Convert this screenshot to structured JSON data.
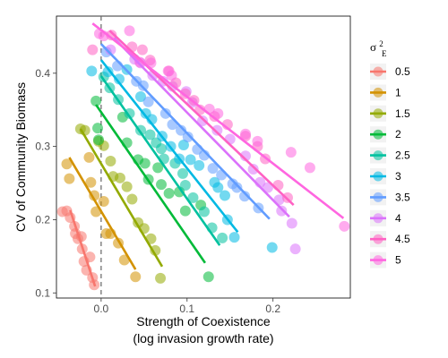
{
  "chart_data": {
    "type": "scatter",
    "xlabel_line1": "Strength of Coexistence",
    "xlabel_line2": "(log invasion growth rate)",
    "ylabel": "CV of Community Biomass",
    "xlim": [
      -0.052,
      0.29
    ],
    "ylim": [
      0.093,
      0.478
    ],
    "x_ticks": [
      0.0,
      0.1,
      0.2
    ],
    "x_tick_labels": [
      "0.0",
      "0.1",
      "0.2"
    ],
    "y_ticks": [
      0.1,
      0.2,
      0.3,
      0.4
    ],
    "y_tick_labels": [
      "0.1",
      "0.2",
      "0.3",
      "0.4"
    ],
    "vline_x": 0,
    "grid": true,
    "legend_position": "right",
    "legend_title": "σ²E",
    "series": [
      {
        "name": "0.5",
        "color": "#f8766d",
        "line": [
          [
            -0.036,
            0.213
          ],
          [
            -0.007,
            0.109
          ]
        ],
        "points": [
          [
            -0.045,
            0.211
          ],
          [
            -0.04,
            0.212
          ],
          [
            -0.036,
            0.203
          ],
          [
            -0.031,
            0.191
          ],
          [
            -0.03,
            0.181
          ],
          [
            -0.027,
            0.174
          ],
          [
            -0.023,
            0.177
          ],
          [
            -0.022,
            0.16
          ],
          [
            -0.02,
            0.143
          ],
          [
            -0.017,
            0.131
          ],
          [
            -0.013,
            0.149
          ],
          [
            -0.01,
            0.121
          ],
          [
            -0.008,
            0.111
          ]
        ]
      },
      {
        "name": "1",
        "color": "#d39200",
        "line": [
          [
            -0.037,
            0.285
          ],
          [
            0.04,
            0.132
          ]
        ],
        "points": [
          [
            -0.04,
            0.276
          ],
          [
            -0.037,
            0.256
          ],
          [
            -0.014,
            0.285
          ],
          [
            -0.012,
            0.251
          ],
          [
            -0.008,
            0.233
          ],
          [
            -0.006,
            0.211
          ],
          [
            0.003,
            0.225
          ],
          [
            0.006,
            0.181
          ],
          [
            0.011,
            0.181
          ],
          [
            0.02,
            0.168
          ],
          [
            0.027,
            0.145
          ],
          [
            0.04,
            0.122
          ]
        ]
      },
      {
        "name": "1.5",
        "color": "#93aa00",
        "line": [
          [
            -0.024,
            0.324
          ],
          [
            0.071,
            0.136
          ]
        ],
        "points": [
          [
            -0.024,
            0.324
          ],
          [
            -0.019,
            0.322
          ],
          [
            -0.003,
            0.307
          ],
          [
            0.003,
            0.301
          ],
          [
            0.011,
            0.28
          ],
          [
            0.014,
            0.259
          ],
          [
            0.022,
            0.257
          ],
          [
            0.03,
            0.245
          ],
          [
            0.036,
            0.228
          ],
          [
            0.043,
            0.196
          ],
          [
            0.05,
            0.188
          ],
          [
            0.058,
            0.174
          ],
          [
            0.063,
            0.158
          ],
          [
            0.069,
            0.12
          ]
        ]
      },
      {
        "name": "2",
        "color": "#00ba38",
        "line": [
          [
            -0.006,
            0.357
          ],
          [
            0.121,
            0.141
          ]
        ],
        "points": [
          [
            -0.006,
            0.362
          ],
          [
            -0.004,
            0.325
          ],
          [
            -0.003,
            0.309
          ],
          [
            0.025,
            0.34
          ],
          [
            0.03,
            0.305
          ],
          [
            0.043,
            0.282
          ],
          [
            0.051,
            0.277
          ],
          [
            0.055,
            0.255
          ],
          [
            0.066,
            0.271
          ],
          [
            0.07,
            0.248
          ],
          [
            0.079,
            0.236
          ],
          [
            0.091,
            0.238
          ],
          [
            0.098,
            0.212
          ],
          [
            0.116,
            0.22
          ],
          [
            0.125,
            0.122
          ]
        ]
      },
      {
        "name": "2.5",
        "color": "#00c19f",
        "line": [
          [
            0.0,
            0.396
          ],
          [
            0.138,
            0.165
          ]
        ],
        "points": [
          [
            0.003,
            0.395
          ],
          [
            0.01,
            0.38
          ],
          [
            0.02,
            0.364
          ],
          [
            0.033,
            0.345
          ],
          [
            0.046,
            0.322
          ],
          [
            0.057,
            0.316
          ],
          [
            0.064,
            0.305
          ],
          [
            0.07,
            0.297
          ],
          [
            0.073,
            0.283
          ],
          [
            0.086,
            0.277
          ],
          [
            0.095,
            0.263
          ],
          [
            0.098,
            0.247
          ],
          [
            0.107,
            0.23
          ],
          [
            0.12,
            0.211
          ],
          [
            0.129,
            0.189
          ],
          [
            0.141,
            0.175
          ]
        ]
      },
      {
        "name": "3",
        "color": "#00b9e3",
        "line": [
          [
            0.0,
            0.418
          ],
          [
            0.159,
            0.183
          ]
        ],
        "points": [
          [
            -0.011,
            0.403
          ],
          [
            0.008,
            0.402
          ],
          [
            0.021,
            0.392
          ],
          [
            0.03,
            0.405
          ],
          [
            0.046,
            0.368
          ],
          [
            0.052,
            0.345
          ],
          [
            0.059,
            0.337
          ],
          [
            0.071,
            0.314
          ],
          [
            0.081,
            0.3
          ],
          [
            0.091,
            0.283
          ],
          [
            0.096,
            0.302
          ],
          [
            0.104,
            0.282
          ],
          [
            0.114,
            0.274
          ],
          [
            0.132,
            0.251
          ],
          [
            0.136,
            0.244
          ],
          [
            0.144,
            0.233
          ],
          [
            0.147,
            0.2
          ],
          [
            0.155,
            0.176
          ],
          [
            0.199,
            0.162
          ]
        ]
      },
      {
        "name": "3.5",
        "color": "#619cff",
        "line": [
          [
            0.0,
            0.44
          ],
          [
            0.196,
            0.201
          ]
        ],
        "points": [
          [
            0.006,
            0.429
          ],
          [
            0.019,
            0.41
          ],
          [
            0.041,
            0.389
          ],
          [
            0.049,
            0.383
          ],
          [
            0.055,
            0.361
          ],
          [
            0.075,
            0.345
          ],
          [
            0.083,
            0.33
          ],
          [
            0.093,
            0.322
          ],
          [
            0.101,
            0.313
          ],
          [
            0.112,
            0.296
          ],
          [
            0.12,
            0.288
          ],
          [
            0.13,
            0.27
          ],
          [
            0.14,
            0.261
          ],
          [
            0.153,
            0.249
          ],
          [
            0.158,
            0.244
          ],
          [
            0.167,
            0.232
          ],
          [
            0.183,
            0.216
          ]
        ]
      },
      {
        "name": "4",
        "color": "#db72fb",
        "line": [
          [
            0.015,
            0.448
          ],
          [
            0.219,
            0.204
          ]
        ],
        "points": [
          [
            0.011,
            0.432
          ],
          [
            0.039,
            0.419
          ],
          [
            0.046,
            0.414
          ],
          [
            0.06,
            0.397
          ],
          [
            0.072,
            0.389
          ],
          [
            0.083,
            0.382
          ],
          [
            0.099,
            0.375
          ],
          [
            0.106,
            0.36
          ],
          [
            0.118,
            0.335
          ],
          [
            0.135,
            0.322
          ],
          [
            0.15,
            0.31
          ],
          [
            0.168,
            0.287
          ],
          [
            0.177,
            0.269
          ],
          [
            0.185,
            0.251
          ],
          [
            0.194,
            0.244
          ],
          [
            0.207,
            0.227
          ],
          [
            0.21,
            0.212
          ],
          [
            0.222,
            0.195
          ],
          [
            0.226,
            0.16
          ]
        ]
      },
      {
        "name": "4.5",
        "color": "#ff61c3",
        "line": [
          [
            0.01,
            0.458
          ],
          [
            0.224,
            0.22
          ]
        ],
        "points": [
          [
            -0.01,
            0.432
          ],
          [
            0.012,
            0.452
          ],
          [
            0.036,
            0.436
          ],
          [
            0.048,
            0.432
          ],
          [
            0.057,
            0.418
          ],
          [
            0.079,
            0.403
          ],
          [
            0.087,
            0.387
          ],
          [
            0.098,
            0.372
          ],
          [
            0.108,
            0.363
          ],
          [
            0.115,
            0.35
          ],
          [
            0.132,
            0.341
          ],
          [
            0.147,
            0.33
          ],
          [
            0.168,
            0.314
          ],
          [
            0.182,
            0.3
          ],
          [
            0.191,
            0.283
          ],
          [
            0.206,
            0.247
          ],
          [
            0.217,
            0.23
          ]
        ]
      },
      {
        "name": "5",
        "color": "#ff66e0",
        "line": [
          [
            -0.01,
            0.468
          ],
          [
            0.282,
            0.202
          ]
        ],
        "points": [
          [
            -0.002,
            0.454
          ],
          [
            0.003,
            0.451
          ],
          [
            0.033,
            0.458
          ],
          [
            0.045,
            0.415
          ],
          [
            0.058,
            0.414
          ],
          [
            0.078,
            0.403
          ],
          [
            0.082,
            0.397
          ],
          [
            0.126,
            0.351
          ],
          [
            0.136,
            0.345
          ],
          [
            0.168,
            0.317
          ],
          [
            0.182,
            0.307
          ],
          [
            0.221,
            0.292
          ],
          [
            0.243,
            0.271
          ],
          [
            0.283,
            0.191
          ]
        ]
      }
    ]
  }
}
